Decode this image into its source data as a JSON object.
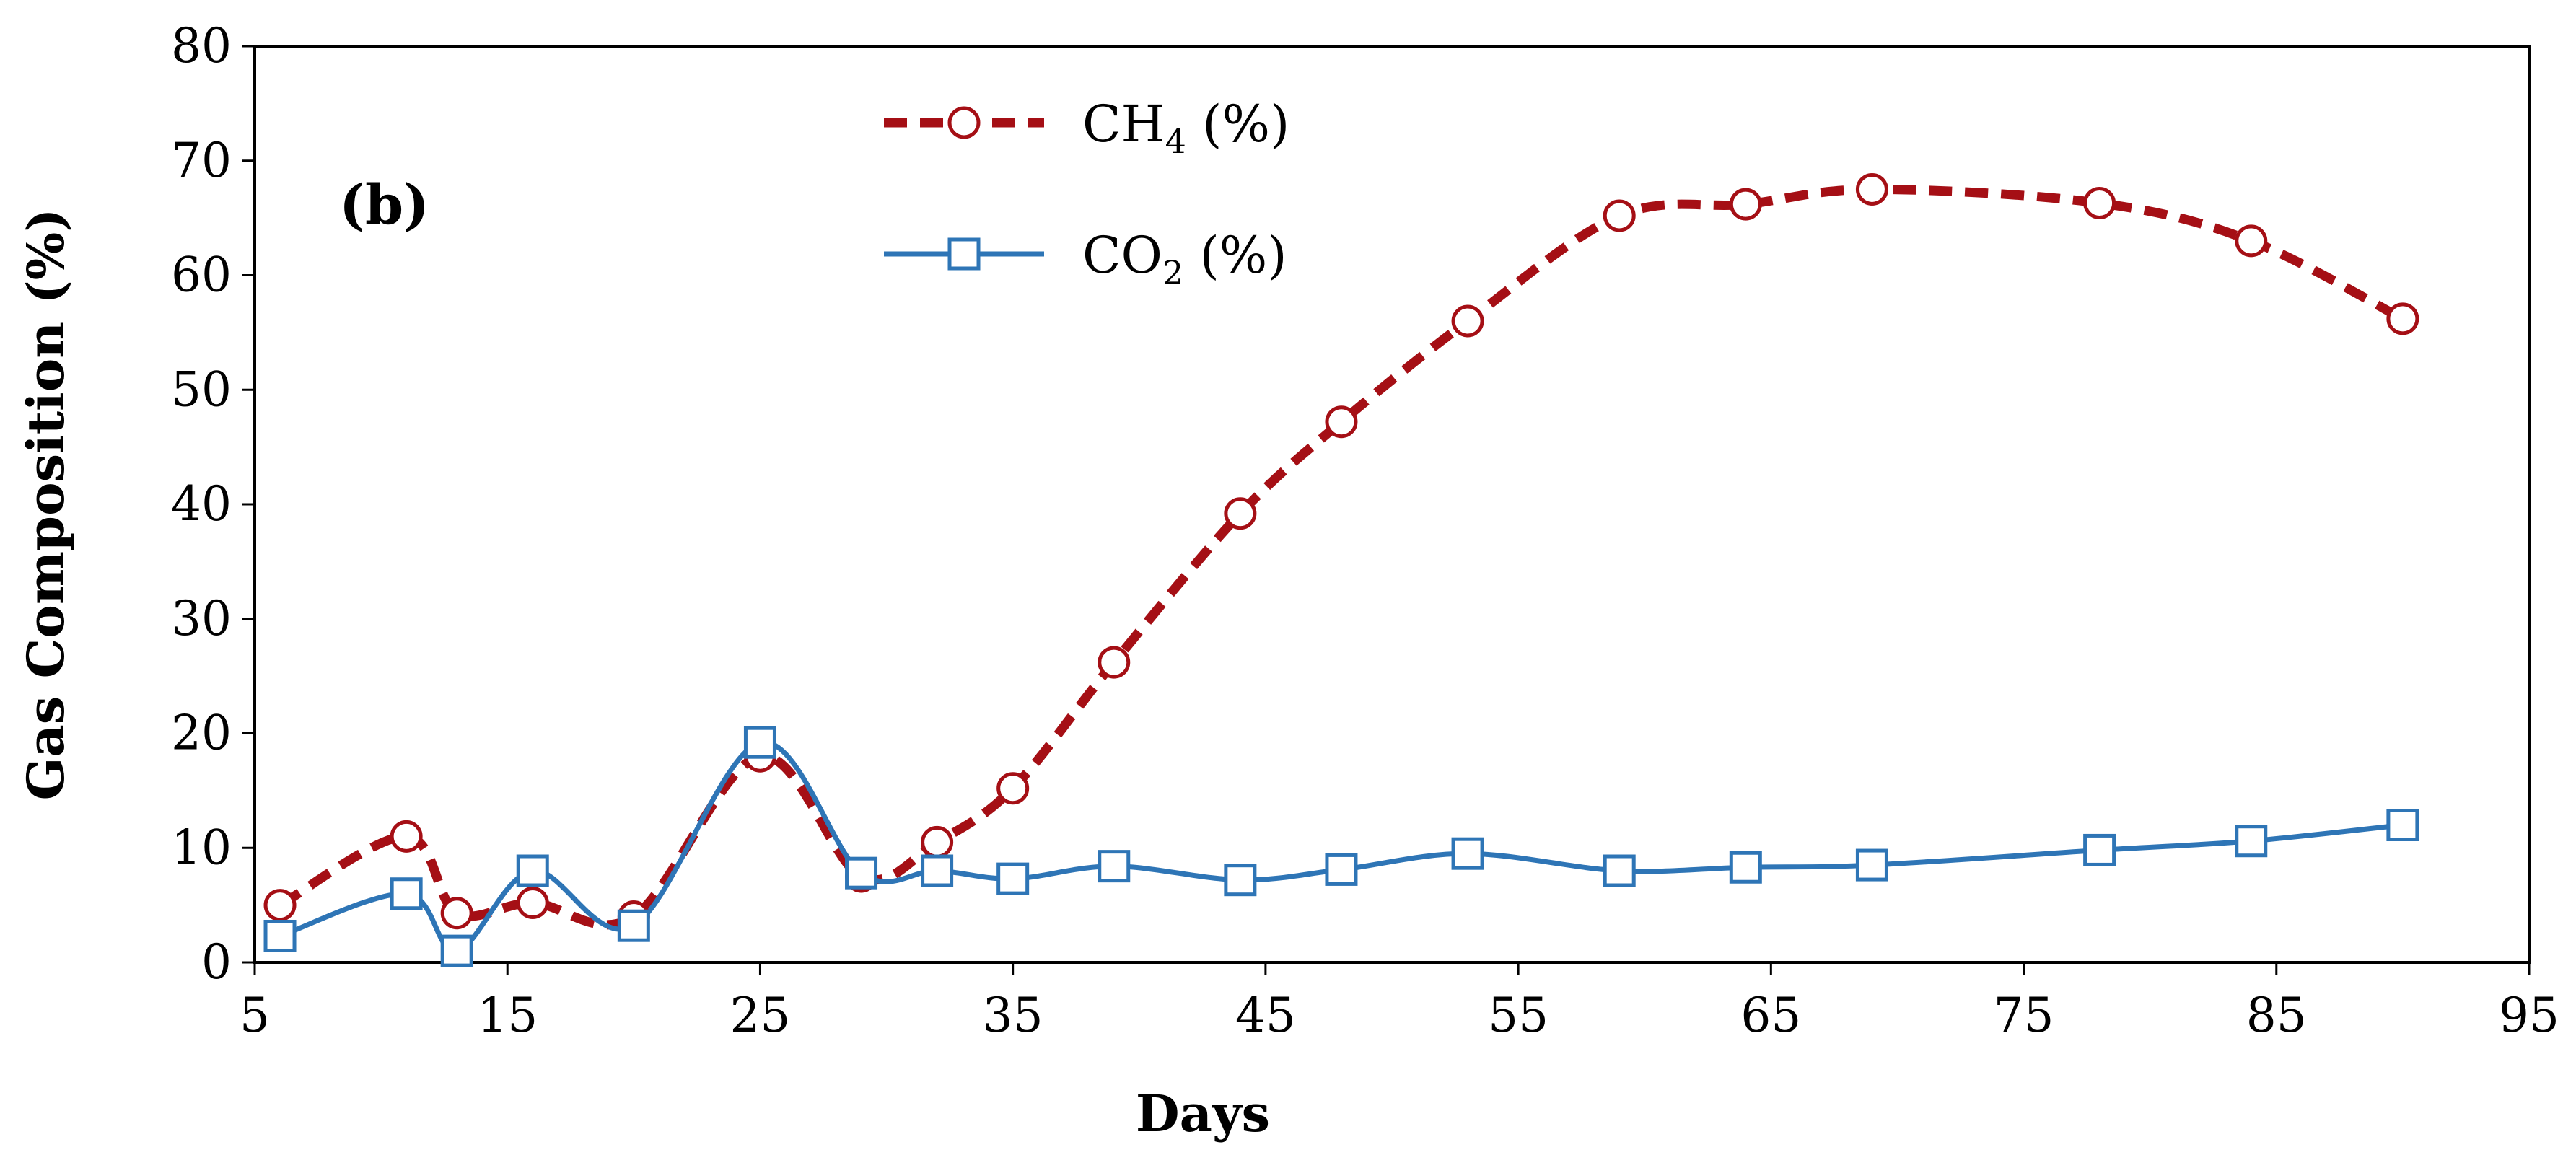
{
  "chart_data": {
    "type": "line",
    "panel_label": "(b)",
    "xlabel": "Days",
    "ylabel": "Gas Composition (%)",
    "xlim": [
      5,
      95
    ],
    "ylim": [
      0,
      80
    ],
    "xticks": [
      "5",
      "15",
      "25",
      "35",
      "45",
      "55",
      "65",
      "75",
      "85",
      "95"
    ],
    "yticks": [
      "0",
      "10",
      "20",
      "30",
      "40",
      "50",
      "60",
      "70",
      "80"
    ],
    "grid": false,
    "legend_position": "top-center",
    "series": [
      {
        "name": "CH4 (%)",
        "legend_main": "CH",
        "legend_sub": "4",
        "legend_suffix": " (%)",
        "color": "#A50F15",
        "line_style": "dashed",
        "marker": "circle",
        "x": [
          6,
          11,
          13,
          16,
          20,
          25,
          29,
          32,
          35,
          39,
          44,
          48,
          53,
          59,
          64,
          69,
          78,
          84,
          90
        ],
        "y": [
          5,
          11,
          4.3,
          5.2,
          4,
          18,
          7.5,
          10.5,
          15.2,
          26.2,
          39.2,
          47.2,
          56,
          65.2,
          66.2,
          67.5,
          66.3,
          63,
          56.2
        ]
      },
      {
        "name": "CO2 (%)",
        "legend_main": "CO",
        "legend_sub": "2",
        "legend_suffix": " (%)",
        "color": "#2E75B6",
        "line_style": "solid",
        "marker": "square",
        "x": [
          6,
          11,
          13,
          16,
          20,
          25,
          29,
          32,
          35,
          39,
          44,
          48,
          53,
          59,
          64,
          69,
          78,
          84,
          90
        ],
        "y": [
          2.3,
          6,
          1,
          8,
          3.2,
          19.2,
          7.8,
          8,
          7.3,
          8.4,
          7.2,
          8.1,
          9.5,
          8,
          8.3,
          8.5,
          9.8,
          10.6,
          12
        ]
      }
    ]
  }
}
